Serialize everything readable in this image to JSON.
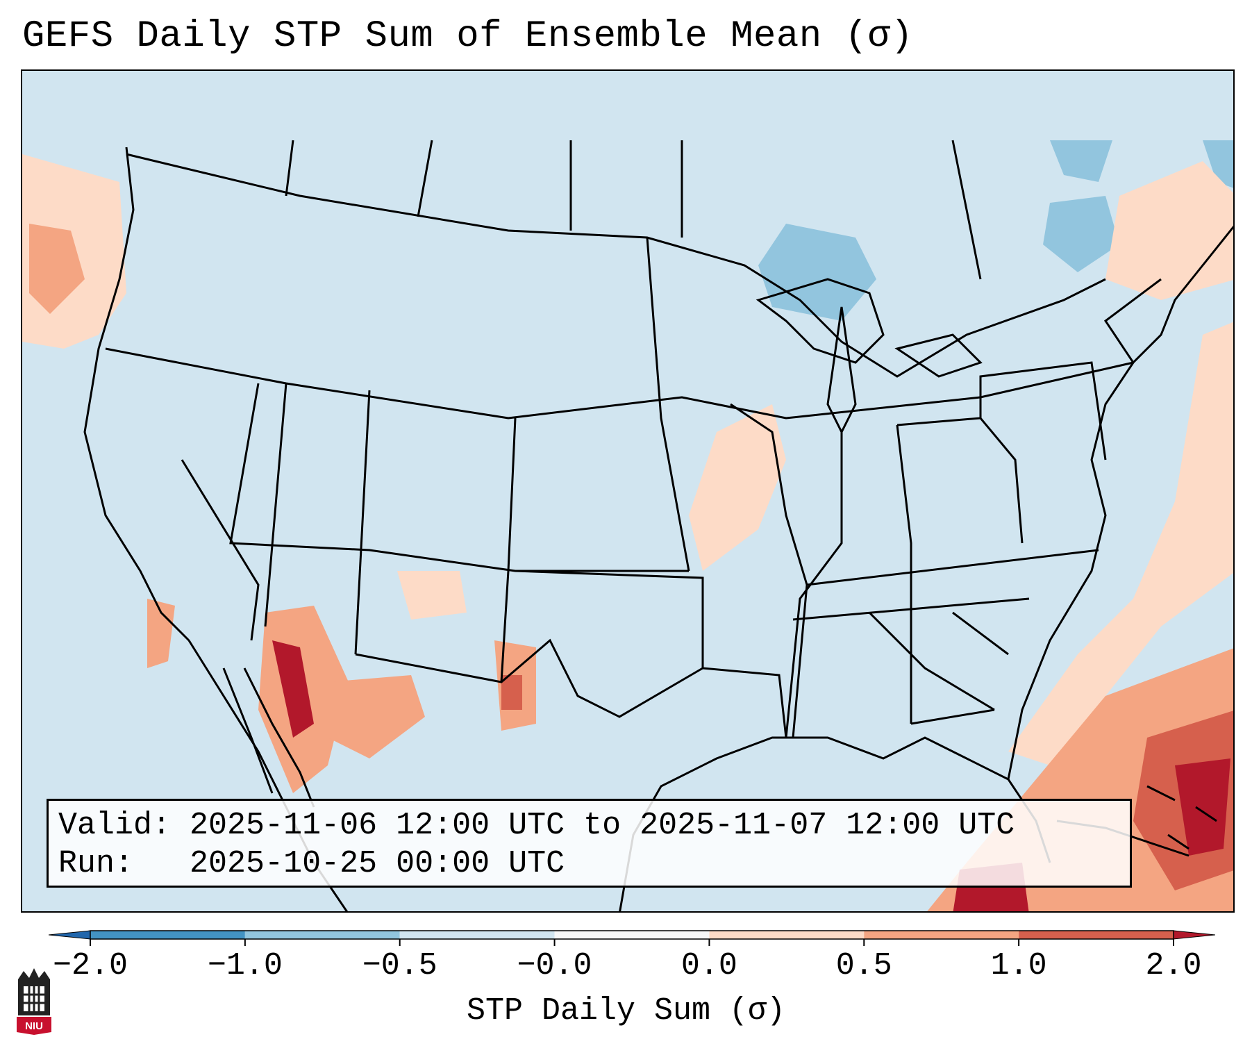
{
  "title": "GEFS Daily STP Sum of Ensemble Mean (σ)",
  "info": {
    "valid_label": "Valid:",
    "valid_value": "2025-11-06 12:00 UTC to 2025-11-07 12:00 UTC",
    "run_label": "Run:",
    "run_value": "2025-10-25 00:00 UTC"
  },
  "colorbar": {
    "label": "STP Daily Sum (σ)",
    "ticks": [
      "−2.0",
      "−1.0",
      "−0.5",
      "−0.0",
      "0.0",
      "0.5",
      "1.0",
      "2.0"
    ],
    "colors": [
      "#2166ac",
      "#4393c3",
      "#92c5de",
      "#d1e5f0",
      "#fddbc7",
      "#f4a582",
      "#d6604d",
      "#b2182b"
    ],
    "under_color": "#2166ac",
    "over_color": "#b2182b"
  },
  "logo_text": "NIU",
  "map_background": "#d1e5f0"
}
